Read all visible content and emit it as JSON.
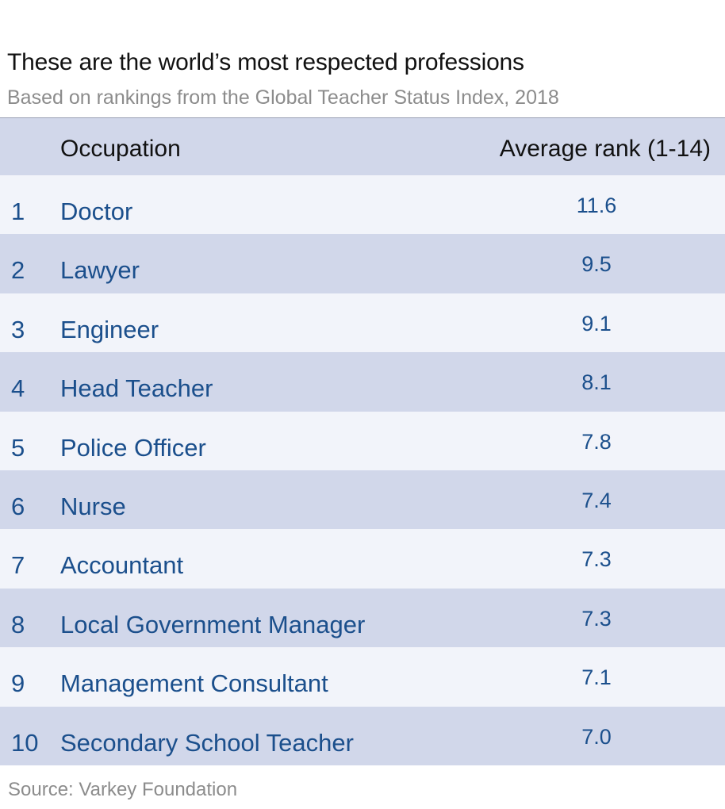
{
  "title": "These are the world’s most respected professions",
  "subtitle": "Based on rankings from the Global Teacher Status Index, 2018",
  "source": "Source: Varkey Foundation",
  "colors": {
    "text_blue": "#1b4f8c",
    "band_dark": "#d1d7ea",
    "band_light": "#f2f4fa",
    "muted": "#8c8c8c"
  },
  "chart_data": {
    "type": "table",
    "title": "These are the world’s most respected professions",
    "subtitle": "Based on rankings from the Global Teacher Status Index, 2018",
    "columns": [
      "",
      "Occupation",
      "Average rank (1-14)"
    ],
    "rows": [
      {
        "rank": "1",
        "occupation": "Doctor",
        "value": "11.6"
      },
      {
        "rank": "2",
        "occupation": "Lawyer",
        "value": "9.5"
      },
      {
        "rank": "3",
        "occupation": "Engineer",
        "value": "9.1"
      },
      {
        "rank": "4",
        "occupation": "Head Teacher",
        "value": "8.1"
      },
      {
        "rank": "5",
        "occupation": "Police Officer",
        "value": "7.8"
      },
      {
        "rank": "6",
        "occupation": "Nurse",
        "value": "7.4"
      },
      {
        "rank": "7",
        "occupation": "Accountant",
        "value": "7.3"
      },
      {
        "rank": "8",
        "occupation": "Local Government Manager",
        "value": "7.3"
      },
      {
        "rank": "9",
        "occupation": "Management Consultant",
        "value": "7.1"
      },
      {
        "rank": "10",
        "occupation": "Secondary School Teacher",
        "value": "7.0"
      }
    ]
  }
}
